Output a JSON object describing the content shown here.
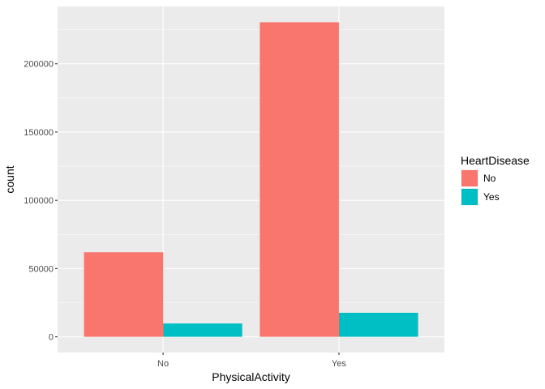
{
  "chart_data": {
    "type": "bar",
    "bar_mode": "dodge",
    "categories": [
      "No",
      "Yes"
    ],
    "series": [
      {
        "name": "No",
        "values": [
          61954,
          230468
        ],
        "color": "#F8766D"
      },
      {
        "name": "Yes",
        "values": [
          9765,
          17607
        ],
        "color": "#00BFC4"
      }
    ],
    "xlabel": "PhysicalActivity",
    "ylabel": "count",
    "ylim": [
      -11523,
      241991
    ],
    "yticks": [
      0,
      50000,
      100000,
      150000,
      200000
    ],
    "ytick_labels": [
      "0",
      "50000",
      "100000",
      "150000",
      "200000"
    ],
    "legend": {
      "title": "HeartDisease",
      "position": "right"
    },
    "grid": true,
    "panel_background": "#EBEBEB"
  }
}
